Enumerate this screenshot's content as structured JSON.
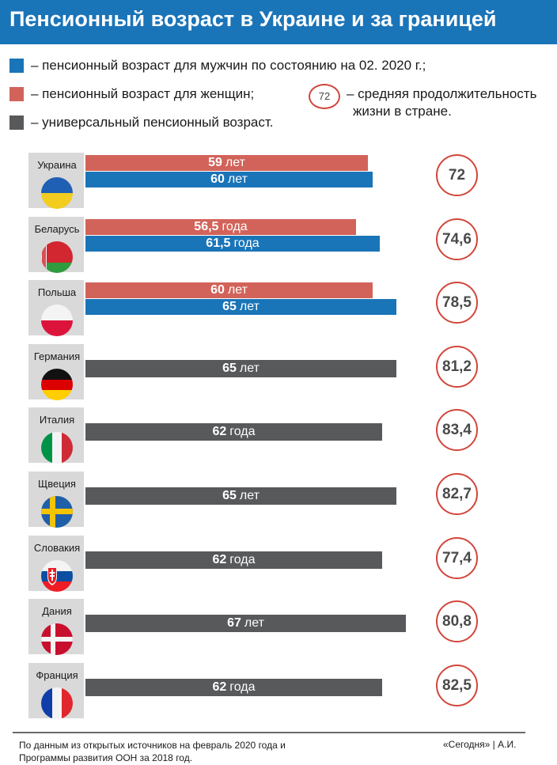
{
  "title": "Пенсионный возраст в Украине и за границей",
  "legend": {
    "men": "– пенсионный возраст для мужчин по состоянию на 02. 2020 г.;",
    "women": "– пенсионный возраст для женщин;",
    "universal": "– универсальный пенсионный возраст.",
    "life_sample": "72",
    "life_line1": "– средняя продолжительность",
    "life_line2": "жизни в стране."
  },
  "colors": {
    "men": "#1a74b8",
    "women": "#d2635a",
    "universal": "#58595b",
    "life_ring": "#d1463b",
    "title_bg": "#1a74b8"
  },
  "chart_data": {
    "type": "bar",
    "orientation": "horizontal",
    "title": "Пенсионный возраст в Украине и за границей",
    "categories": [
      "Украина",
      "Беларусь",
      "Польша",
      "Германия",
      "Италия",
      "Щвеция",
      "Словакия",
      "Дания",
      "Франция"
    ],
    "series": [
      {
        "name": "пенсионный возраст для женщин",
        "values": [
          59,
          56.5,
          60,
          null,
          null,
          null,
          null,
          null,
          null
        ]
      },
      {
        "name": "пенсионный возраст для мужчин по состоянию на 02. 2020 г.",
        "values": [
          60,
          61.5,
          65,
          null,
          null,
          null,
          null,
          null,
          null
        ]
      },
      {
        "name": "универсальный пенсионный возраст",
        "values": [
          null,
          null,
          null,
          65,
          62,
          65,
          62,
          67,
          62
        ]
      }
    ],
    "life_expectancy": [
      72,
      74.6,
      78.5,
      81.2,
      83.4,
      82.7,
      77.4,
      80.8,
      82.5
    ],
    "flags": [
      "ukraine-flag",
      "belarus-flag",
      "poland-flag",
      "germany-flag",
      "italy-flag",
      "sweden-flag",
      "slovakia-flag",
      "denmark-flag",
      "france-flag"
    ],
    "rows": [
      {
        "country": "Украина",
        "life": "72",
        "bars": [
          {
            "kind": "women",
            "value": 59,
            "num": "59",
            "unit": "лет"
          },
          {
            "kind": "men",
            "value": 60,
            "num": "60",
            "unit": "лет"
          }
        ]
      },
      {
        "country": "Беларусь",
        "life": "74,6",
        "bars": [
          {
            "kind": "women",
            "value": 56.5,
            "num": "56,5",
            "unit": "года"
          },
          {
            "kind": "men",
            "value": 61.5,
            "num": "61,5",
            "unit": "года"
          }
        ]
      },
      {
        "country": "Польша",
        "life": "78,5",
        "bars": [
          {
            "kind": "women",
            "value": 60,
            "num": "60",
            "unit": "лет"
          },
          {
            "kind": "men",
            "value": 65,
            "num": "65",
            "unit": "лет"
          }
        ]
      },
      {
        "country": "Германия",
        "life": "81,2",
        "bars": [
          {
            "kind": "universal",
            "value": 65,
            "num": "65",
            "unit": "лет"
          }
        ]
      },
      {
        "country": "Италия",
        "life": "83,4",
        "bars": [
          {
            "kind": "universal",
            "value": 62,
            "num": "62",
            "unit": "года"
          }
        ]
      },
      {
        "country": "Щвеция",
        "life": "82,7",
        "bars": [
          {
            "kind": "universal",
            "value": 65,
            "num": "65",
            "unit": "лет"
          }
        ]
      },
      {
        "country": "Словакия",
        "life": "77,4",
        "bars": [
          {
            "kind": "universal",
            "value": 62,
            "num": "62",
            "unit": "года"
          }
        ]
      },
      {
        "country": "Дания",
        "life": "80,8",
        "bars": [
          {
            "kind": "universal",
            "value": 67,
            "num": "67",
            "unit": "лет"
          }
        ]
      },
      {
        "country": "Франция",
        "life": "82,5",
        "bars": [
          {
            "kind": "universal",
            "value": 62,
            "num": "62",
            "unit": "года"
          }
        ]
      }
    ]
  },
  "footer": {
    "source_line1": "По данным из открытых источников на февраль 2020 года и",
    "source_line2": "Программы развития ООН за 2018 год.",
    "credit": "«Сегодня» | А.И."
  }
}
